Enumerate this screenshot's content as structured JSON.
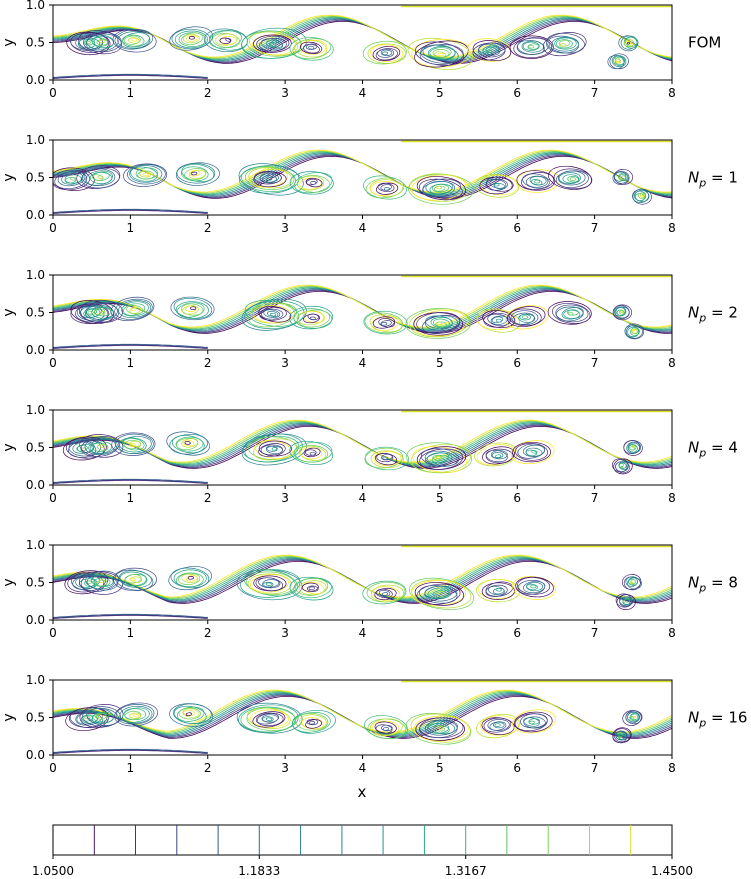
{
  "figure": {
    "xlabel": "x",
    "colorbar": {
      "min": 1.05,
      "max": 1.45,
      "tick_labels": [
        "1.0500",
        "1.1833",
        "1.3167",
        "1.4500"
      ],
      "tick_values": [
        1.05,
        1.1833,
        1.3167,
        1.45
      ],
      "levels": [
        1.0767,
        1.1033,
        1.13,
        1.1567,
        1.1833,
        1.21,
        1.2367,
        1.2633,
        1.29,
        1.3167,
        1.3433,
        1.37,
        1.3967,
        1.4233
      ],
      "colormap": "viridis"
    }
  },
  "chart_data": [
    {
      "type": "contour",
      "panel_label": "FOM",
      "label_math": false,
      "ylabel": "y",
      "xlim": [
        0,
        8
      ],
      "ylim": [
        0,
        1
      ],
      "xticks": [
        0,
        1,
        2,
        3,
        4,
        5,
        6,
        7,
        8
      ],
      "yticks": [
        0.0,
        0.5,
        1.0
      ],
      "xtick_labels": [
        "0",
        "1",
        "2",
        "3",
        "4",
        "5",
        "6",
        "7",
        "8"
      ],
      "ytick_labels": [
        "0.0",
        "0.5",
        "1.0"
      ],
      "vortex_centers_x": [
        0.45,
        0.62,
        1.05,
        1.78,
        2.25,
        2.85,
        3.35,
        4.3,
        5.0,
        5.65,
        6.2,
        6.6,
        7.3,
        7.45
      ]
    },
    {
      "type": "contour",
      "panel_label": "N_p = 1",
      "label_math": true,
      "ylabel": "y",
      "xlim": [
        0,
        8
      ],
      "ylim": [
        0,
        1
      ],
      "xticks": [
        0,
        1,
        2,
        3,
        4,
        5,
        6,
        7,
        8
      ],
      "yticks": [
        0.0,
        0.5,
        1.0
      ],
      "xtick_labels": [
        "0",
        "1",
        "2",
        "3",
        "4",
        "5",
        "6",
        "7",
        "8"
      ],
      "ytick_labels": [
        "0.0",
        "0.5",
        "1.0"
      ],
      "vortex_centers_x": [
        0.25,
        0.6,
        1.2,
        1.85,
        2.8,
        3.35,
        4.3,
        5.0,
        5.75,
        6.25,
        6.7,
        7.35,
        7.6
      ]
    },
    {
      "type": "contour",
      "panel_label": "N_p = 2",
      "label_math": true,
      "ylabel": "y",
      "xlim": [
        0,
        8
      ],
      "ylim": [
        0,
        1
      ],
      "xticks": [
        0,
        1,
        2,
        3,
        4,
        5,
        6,
        7,
        8
      ],
      "yticks": [
        0.0,
        0.5,
        1.0
      ],
      "xtick_labels": [
        "0",
        "1",
        "2",
        "3",
        "4",
        "5",
        "6",
        "7",
        "8"
      ],
      "ytick_labels": [
        "0.0",
        "0.5",
        "1.0"
      ],
      "vortex_centers_x": [
        0.5,
        0.62,
        1.05,
        1.8,
        2.85,
        3.35,
        4.3,
        5.0,
        5.75,
        6.1,
        6.7,
        7.35,
        7.5
      ]
    },
    {
      "type": "contour",
      "panel_label": "N_p = 4",
      "label_math": true,
      "ylabel": "y",
      "xlim": [
        0,
        8
      ],
      "ylim": [
        0,
        1
      ],
      "xticks": [
        0,
        1,
        2,
        3,
        4,
        5,
        6,
        7,
        8
      ],
      "yticks": [
        0.0,
        0.5,
        1.0
      ],
      "xtick_labels": [
        "0",
        "1",
        "2",
        "3",
        "4",
        "5",
        "6",
        "7",
        "8"
      ],
      "ytick_labels": [
        "0.0",
        "0.5",
        "1.0"
      ],
      "vortex_centers_x": [
        0.4,
        0.62,
        1.05,
        1.75,
        2.85,
        3.35,
        4.3,
        5.0,
        5.75,
        6.2,
        7.35,
        7.5
      ]
    },
    {
      "type": "contour",
      "panel_label": "N_p = 8",
      "label_math": true,
      "ylabel": "y",
      "xlim": [
        0,
        8
      ],
      "ylim": [
        0,
        1
      ],
      "xticks": [
        0,
        1,
        2,
        3,
        4,
        5,
        6,
        7,
        8
      ],
      "yticks": [
        0.0,
        0.5,
        1.0
      ],
      "xtick_labels": [
        "0",
        "1",
        "2",
        "3",
        "4",
        "5",
        "6",
        "7",
        "8"
      ],
      "ytick_labels": [
        "0.0",
        "0.5",
        "1.0"
      ],
      "vortex_centers_x": [
        0.45,
        0.62,
        1.05,
        1.78,
        2.8,
        3.35,
        4.3,
        5.0,
        5.75,
        6.2,
        7.4,
        7.5
      ]
    },
    {
      "type": "contour",
      "panel_label": "N_p = 16",
      "label_math": true,
      "ylabel": "y",
      "xlim": [
        0,
        8
      ],
      "ylim": [
        0,
        1
      ],
      "xticks": [
        0,
        1,
        2,
        3,
        4,
        5,
        6,
        7,
        8
      ],
      "yticks": [
        0.0,
        0.5,
        1.0
      ],
      "xtick_labels": [
        "0",
        "1",
        "2",
        "3",
        "4",
        "5",
        "6",
        "7",
        "8"
      ],
      "ytick_labels": [
        "0.0",
        "0.5",
        "1.0"
      ],
      "vortex_centers_x": [
        0.45,
        0.62,
        1.05,
        1.78,
        2.8,
        3.35,
        4.3,
        5.0,
        5.75,
        6.2,
        7.35,
        7.5
      ]
    }
  ]
}
